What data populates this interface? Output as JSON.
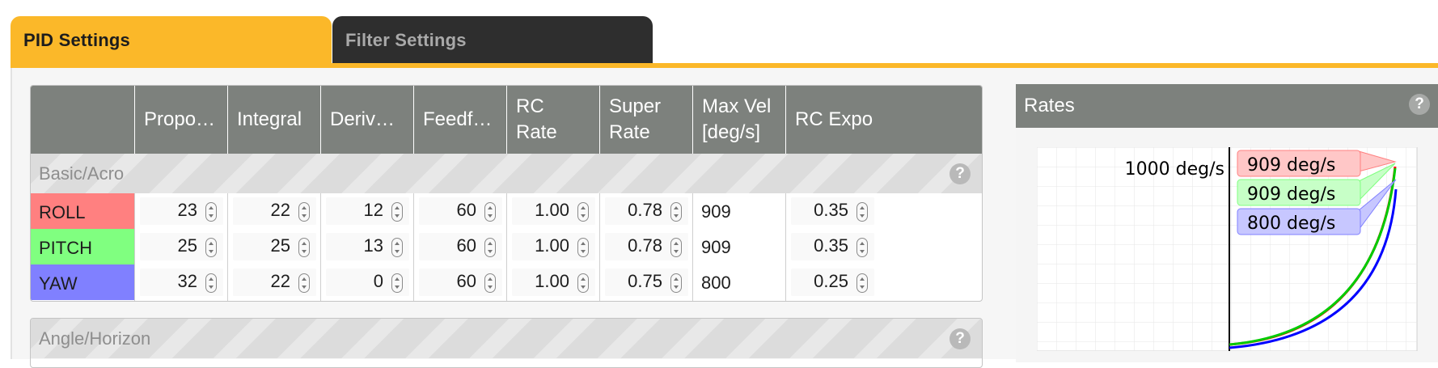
{
  "tabs": [
    {
      "label": "PID Settings",
      "active": true
    },
    {
      "label": "Filter Settings",
      "active": false
    }
  ],
  "pid_table": {
    "columns": [
      "",
      "Proport...",
      "Integral",
      "Derivati...",
      "Feedfor...",
      "RC Rate",
      "Super\nRate",
      "Max Vel\n[deg/s]",
      "RC Expo"
    ],
    "section": "Basic/Acro",
    "help": "?",
    "rows": [
      {
        "axis": "ROLL",
        "color": "#ff8080",
        "p": "23",
        "i": "22",
        "d": "12",
        "ff": "60",
        "rc_rate": "1.00",
        "super_rate": "0.78",
        "max_vel": "909",
        "rc_expo": "0.35"
      },
      {
        "axis": "PITCH",
        "color": "#80ff80",
        "p": "25",
        "i": "25",
        "d": "13",
        "ff": "60",
        "rc_rate": "1.00",
        "super_rate": "0.78",
        "max_vel": "909",
        "rc_expo": "0.35"
      },
      {
        "axis": "YAW",
        "color": "#8080ff",
        "p": "32",
        "i": "22",
        "d": "0",
        "ff": "60",
        "rc_rate": "1.00",
        "super_rate": "0.75",
        "max_vel": "800",
        "rc_expo": "0.25"
      }
    ],
    "section2": "Angle/Horizon"
  },
  "rates": {
    "title": "Rates",
    "help": "?",
    "max_label": "1000 deg/s",
    "labels": [
      {
        "text": "909 deg/s",
        "color": "#ffc7c7",
        "border": "#ff8080"
      },
      {
        "text": "909 deg/s",
        "color": "#c7ffc7",
        "border": "#80ff80"
      },
      {
        "text": "800 deg/s",
        "color": "#c7c7ff",
        "border": "#8080ff"
      }
    ],
    "curve_colors": {
      "roll": "#ff0000",
      "pitch": "#00cc00",
      "yaw": "#0000ff"
    }
  }
}
